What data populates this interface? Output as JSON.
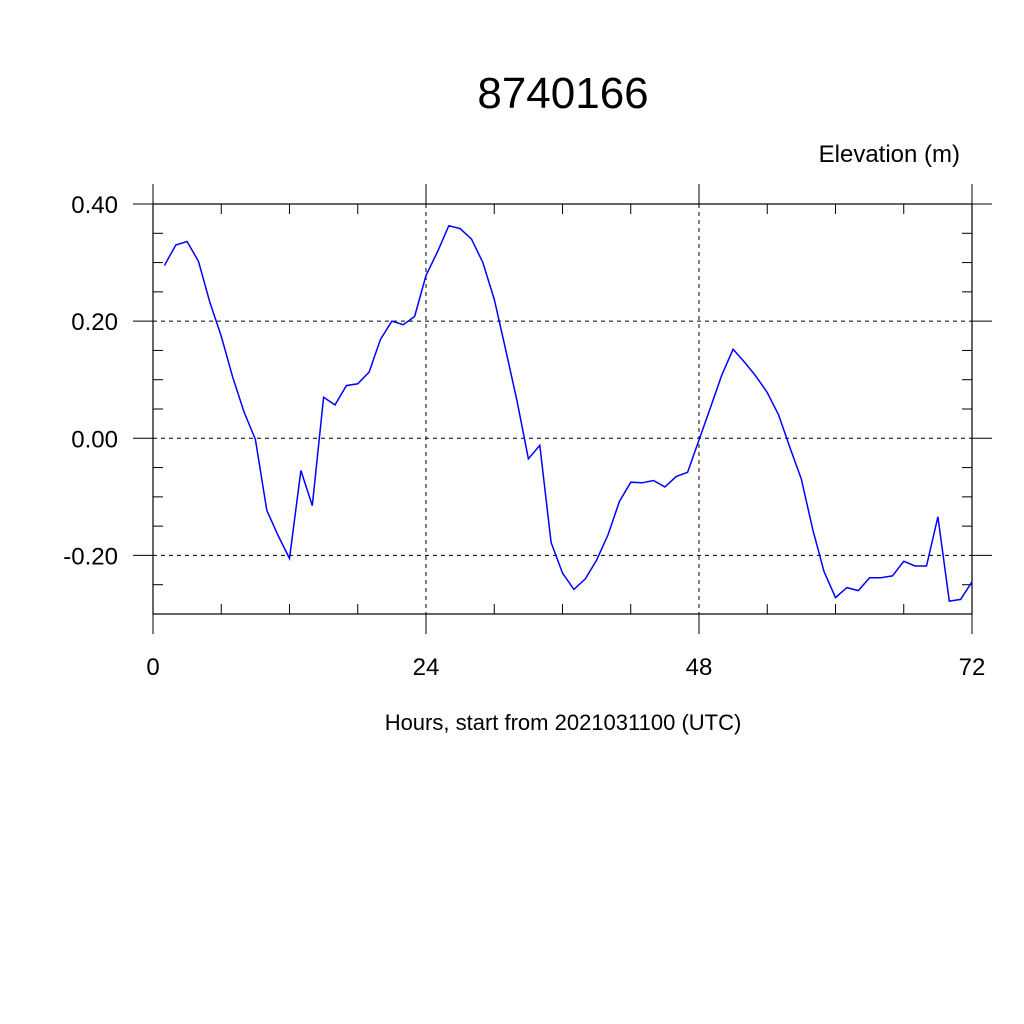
{
  "chart_data": {
    "type": "line",
    "title": "8740166",
    "subtitle": "Elevation (m)",
    "xlabel": "Hours, start from 2021031100 (UTC)",
    "ylabel": "",
    "xlim": [
      0,
      72
    ],
    "ylim": [
      -0.3,
      0.4
    ],
    "xticks": [
      0,
      24,
      48,
      72
    ],
    "xtick_labels": [
      "0",
      "24",
      "48",
      "72"
    ],
    "yticks": [
      0.4,
      0.2,
      0.0,
      -0.2
    ],
    "ytick_labels": [
      "0.40",
      "0.20",
      "0.00",
      "-0.20"
    ],
    "grid": true,
    "line_color": "#0000ff",
    "series": [
      {
        "x": [
          1,
          2,
          3,
          4,
          5,
          6,
          7,
          8,
          9,
          10,
          11,
          12,
          13,
          14,
          15,
          16,
          17,
          18,
          19,
          20,
          21,
          22,
          23,
          24,
          25,
          26,
          27,
          28,
          29,
          30,
          31,
          32,
          33,
          34,
          35,
          36,
          37,
          38,
          39,
          40,
          41,
          42,
          43,
          44,
          45,
          46,
          47,
          48,
          49,
          50,
          51,
          52,
          53,
          54,
          55,
          56,
          57,
          58,
          59,
          60,
          61,
          62,
          63,
          64,
          65,
          66,
          67,
          68,
          69,
          70,
          71,
          72
        ],
        "values": [
          0.295,
          0.33,
          0.336,
          0.302,
          0.232,
          0.174,
          0.105,
          0.045,
          -0.002,
          -0.123,
          -0.166,
          -0.205,
          -0.055,
          -0.115,
          0.07,
          0.057,
          0.09,
          0.093,
          0.113,
          0.169,
          0.2,
          0.194,
          0.208,
          0.278,
          0.318,
          0.363,
          0.358,
          0.34,
          0.3,
          0.237,
          0.152,
          0.064,
          -0.035,
          -0.012,
          -0.178,
          -0.23,
          -0.258,
          -0.24,
          -0.208,
          -0.165,
          -0.108,
          -0.075,
          -0.076,
          -0.072,
          -0.083,
          -0.065,
          -0.058,
          -0.003,
          0.052,
          0.108,
          0.152,
          0.13,
          0.106,
          0.078,
          0.04,
          -0.016,
          -0.07,
          -0.156,
          -0.228,
          -0.272,
          -0.255,
          -0.26,
          -0.238,
          -0.238,
          -0.235,
          -0.21,
          -0.218,
          -0.218,
          -0.134,
          -0.278,
          -0.275,
          -0.245
        ]
      }
    ]
  }
}
